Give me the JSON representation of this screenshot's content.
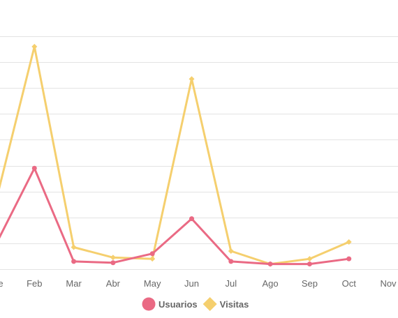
{
  "chart_data": {
    "type": "line",
    "categories": [
      "Ene",
      "Feb",
      "Mar",
      "Abr",
      "May",
      "Jun",
      "Jul",
      "Ago",
      "Sep",
      "Oct",
      "Nov"
    ],
    "ylim": [
      0,
      9
    ],
    "grid": true,
    "legend_position": "bottom",
    "series": [
      {
        "name": "Usuarios",
        "color": "#ea6a84",
        "marker": "circle",
        "values": [
          0.9,
          3.9,
          0.3,
          0.25,
          0.6,
          1.95,
          0.3,
          0.2,
          0.2,
          0.4,
          null
        ]
      },
      {
        "name": "Visitas",
        "color": "#f5cf6e",
        "marker": "diamond",
        "values": [
          2.5,
          8.6,
          0.85,
          0.45,
          0.4,
          7.35,
          0.7,
          0.2,
          0.4,
          1.05,
          null
        ]
      }
    ]
  }
}
